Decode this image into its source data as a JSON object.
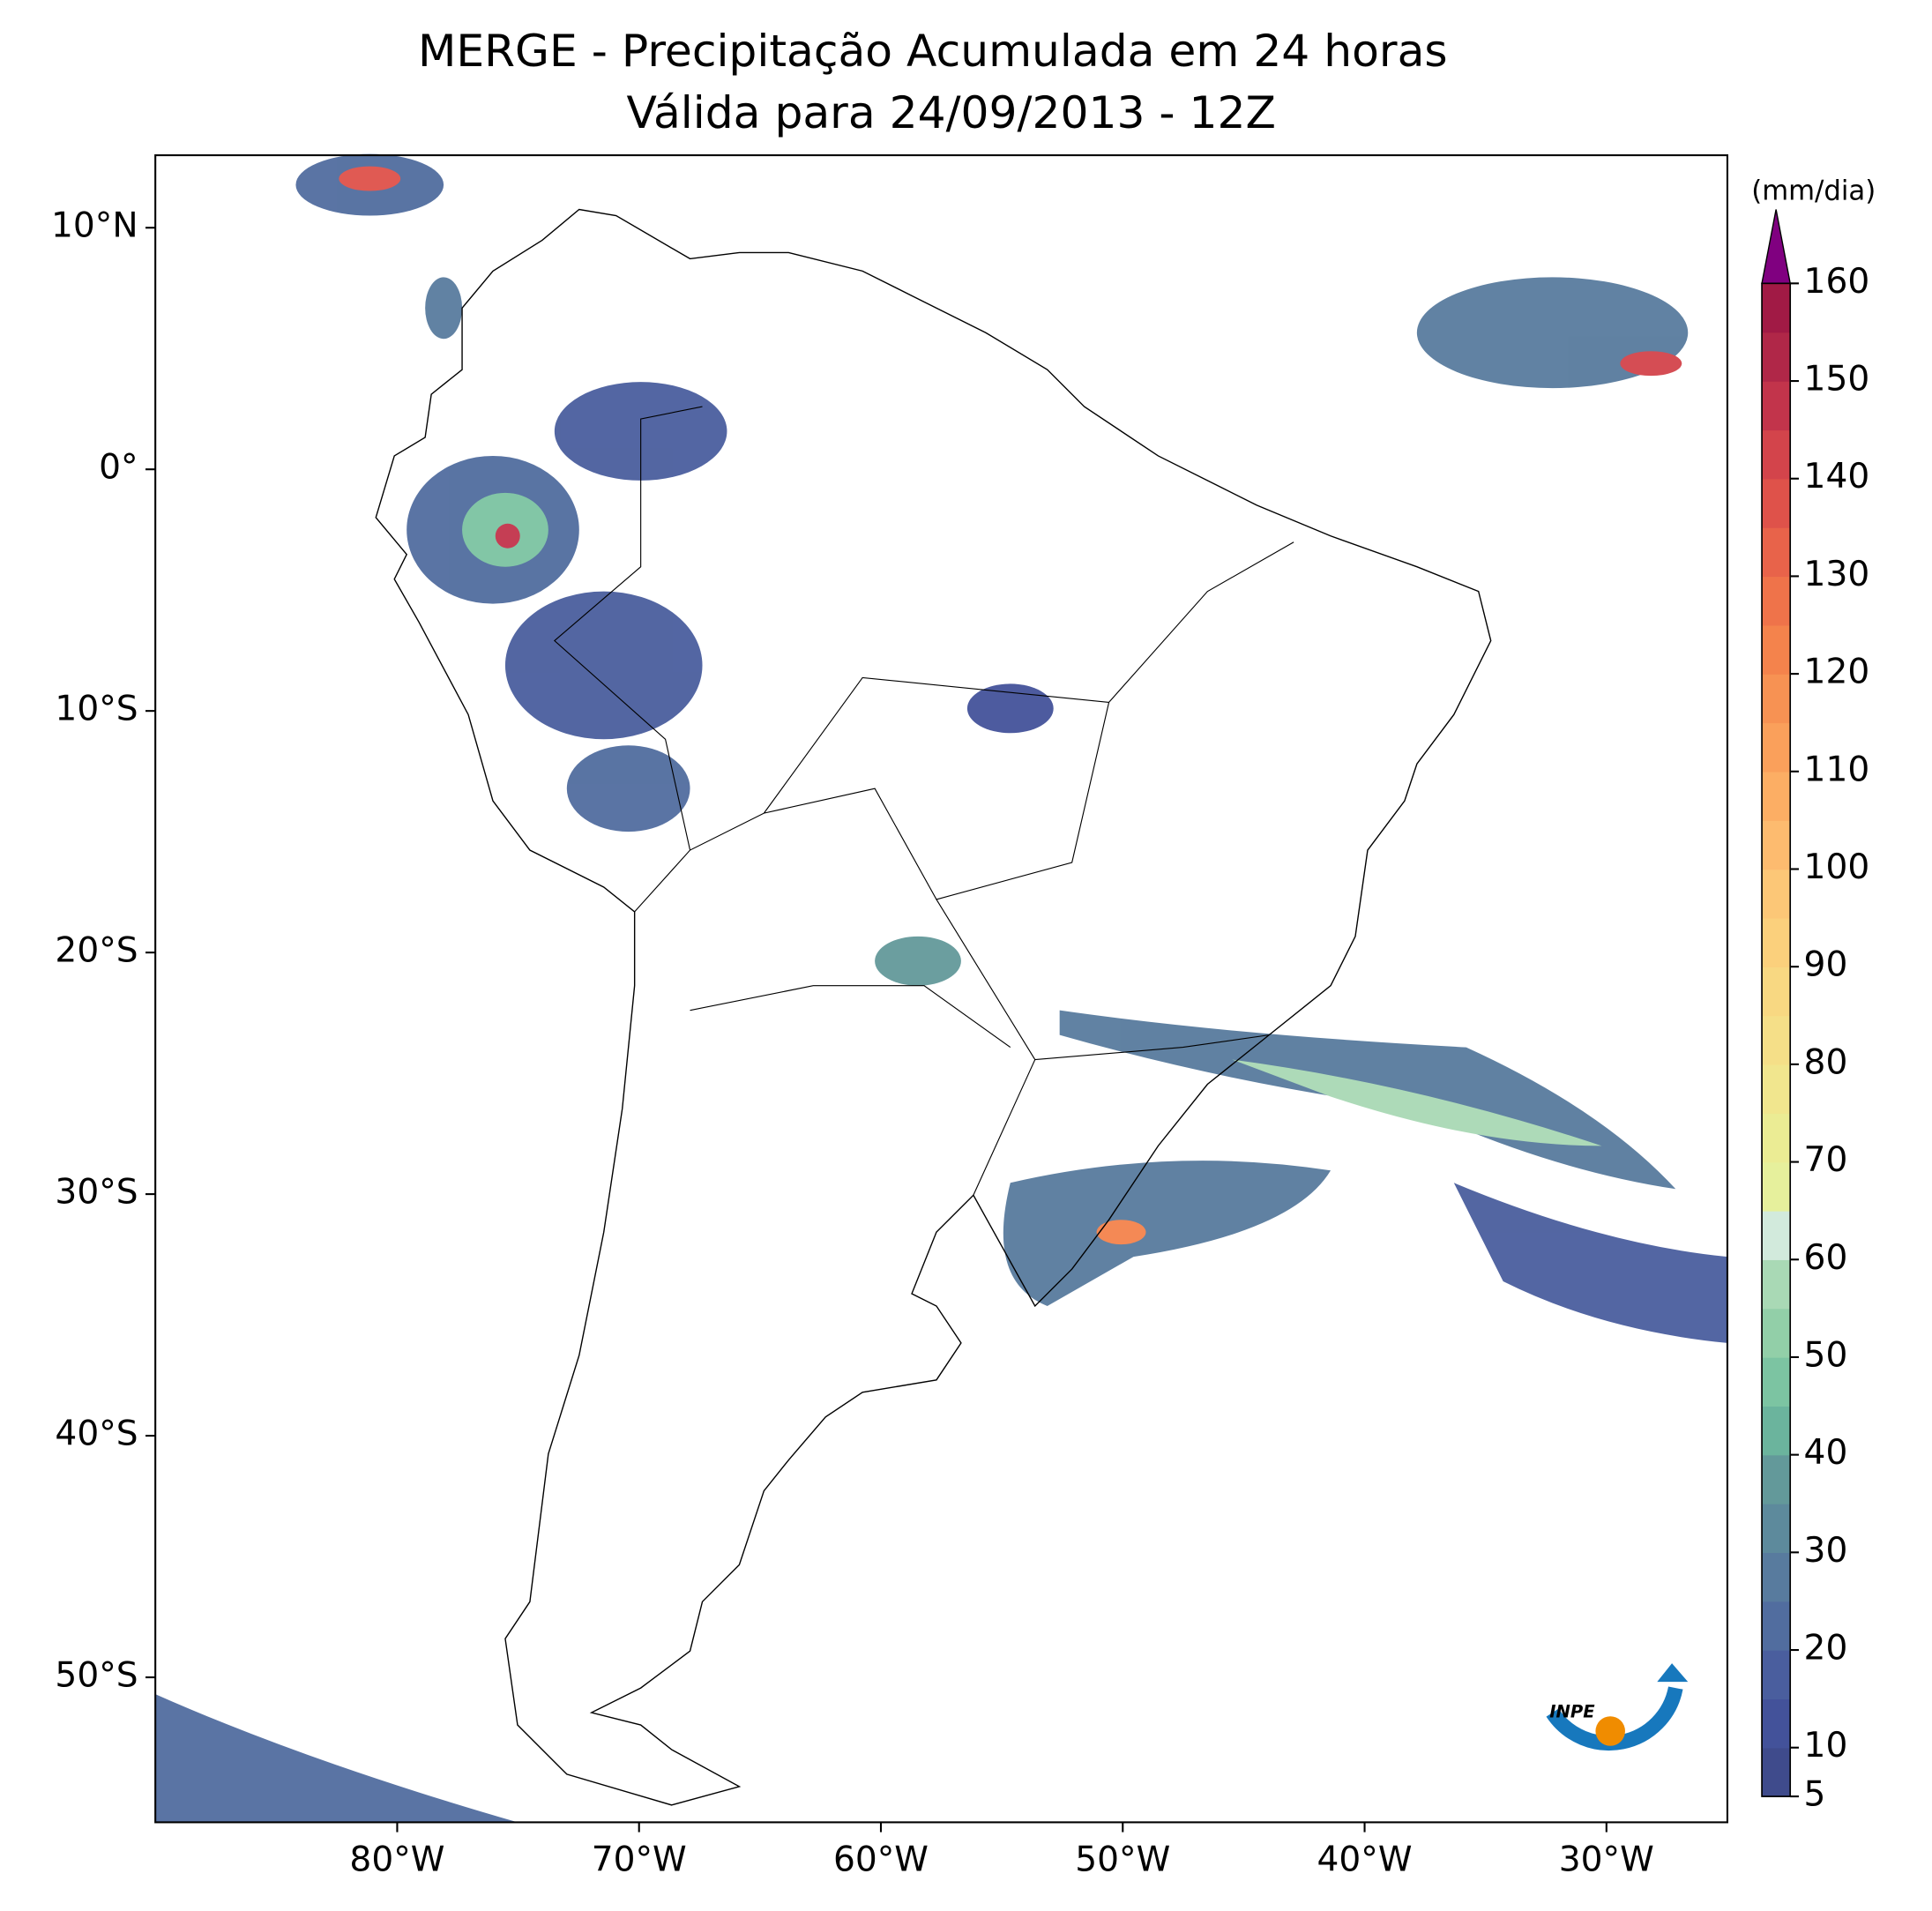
{
  "title": [
    "MERGE - Precipitação Acumulada em 24 horas",
    "Válida para 24/09/2013 - 12Z"
  ],
  "map": {
    "xlim": [
      -90,
      -25
    ],
    "ylim": [
      -56,
      13
    ],
    "xticks": [
      {
        "value": -80,
        "label": "80°W"
      },
      {
        "value": -70,
        "label": "70°W"
      },
      {
        "value": -60,
        "label": "60°W"
      },
      {
        "value": -50,
        "label": "50°W"
      },
      {
        "value": -40,
        "label": "40°W"
      },
      {
        "value": -30,
        "label": "30°W"
      }
    ],
    "yticks": [
      {
        "value": 10,
        "label": "10°N"
      },
      {
        "value": 0,
        "label": "0°"
      },
      {
        "value": -10,
        "label": "10°S"
      },
      {
        "value": -20,
        "label": "20°S"
      },
      {
        "value": -30,
        "label": "30°S"
      },
      {
        "value": -40,
        "label": "40°S"
      },
      {
        "value": -50,
        "label": "50°S"
      }
    ]
  },
  "colorbar": {
    "label": "(mm/dia)",
    "levels": [
      5,
      10,
      15,
      20,
      25,
      30,
      35,
      40,
      45,
      50,
      55,
      60,
      65,
      70,
      75,
      80,
      85,
      90,
      95,
      100,
      105,
      110,
      115,
      120,
      125,
      130,
      135,
      140,
      145,
      150,
      155,
      160
    ],
    "colors": [
      "#3f4b8c",
      "#43529a",
      "#4a5e9e",
      "#516d9f",
      "#587b9e",
      "#5d8a9c",
      "#63999a",
      "#6bb49d",
      "#7cc4a2",
      "#92cfa8",
      "#a9d9b5",
      "#d2eadc",
      "#e6f09c",
      "#ebec94",
      "#f1e68e",
      "#f5df88",
      "#f8d882",
      "#fbd07c",
      "#fcc777",
      "#fdbb6f",
      "#fcae64",
      "#faa05b",
      "#f79253",
      "#f4834c",
      "#ef734a",
      "#e8634a",
      "#df524a",
      "#d3444b",
      "#c2344b",
      "#b02748",
      "#a11a45"
    ],
    "extend_color": "#800080",
    "ticks": [
      5,
      10,
      20,
      30,
      40,
      50,
      60,
      70,
      80,
      90,
      100,
      110,
      120,
      130,
      140,
      150,
      160
    ]
  },
  "logo_text": "INPE"
}
